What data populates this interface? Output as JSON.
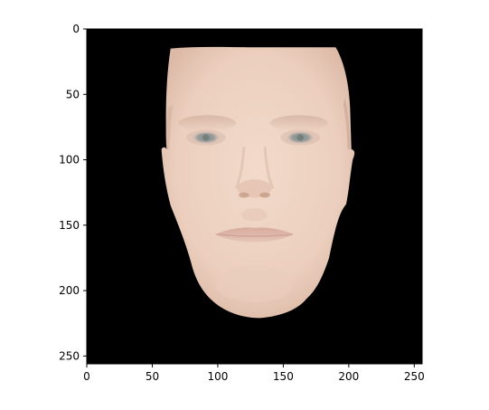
{
  "chart_data": {
    "type": "image",
    "title": "",
    "xlabel": "",
    "ylabel": "",
    "image_description": "frontal rendered face on a black background",
    "image_size": [
      256,
      256
    ],
    "xlim": [
      0,
      256
    ],
    "ylim": [
      256,
      0
    ],
    "x_ticks": [
      0,
      50,
      100,
      150,
      200,
      250
    ],
    "y_ticks": [
      0,
      50,
      100,
      150,
      200,
      250
    ],
    "x_tick_labels": [
      "0",
      "50",
      "100",
      "150",
      "200",
      "250"
    ],
    "y_tick_labels": [
      "0",
      "50",
      "100",
      "150",
      "200",
      "250"
    ]
  },
  "colors": {
    "background": "#000000",
    "skin": "#efd5c5",
    "skin_shadow": "#d9b8a6",
    "eye": "#8e9694",
    "lips": "#dbb4a6",
    "hair_edge": "#b49a88"
  }
}
